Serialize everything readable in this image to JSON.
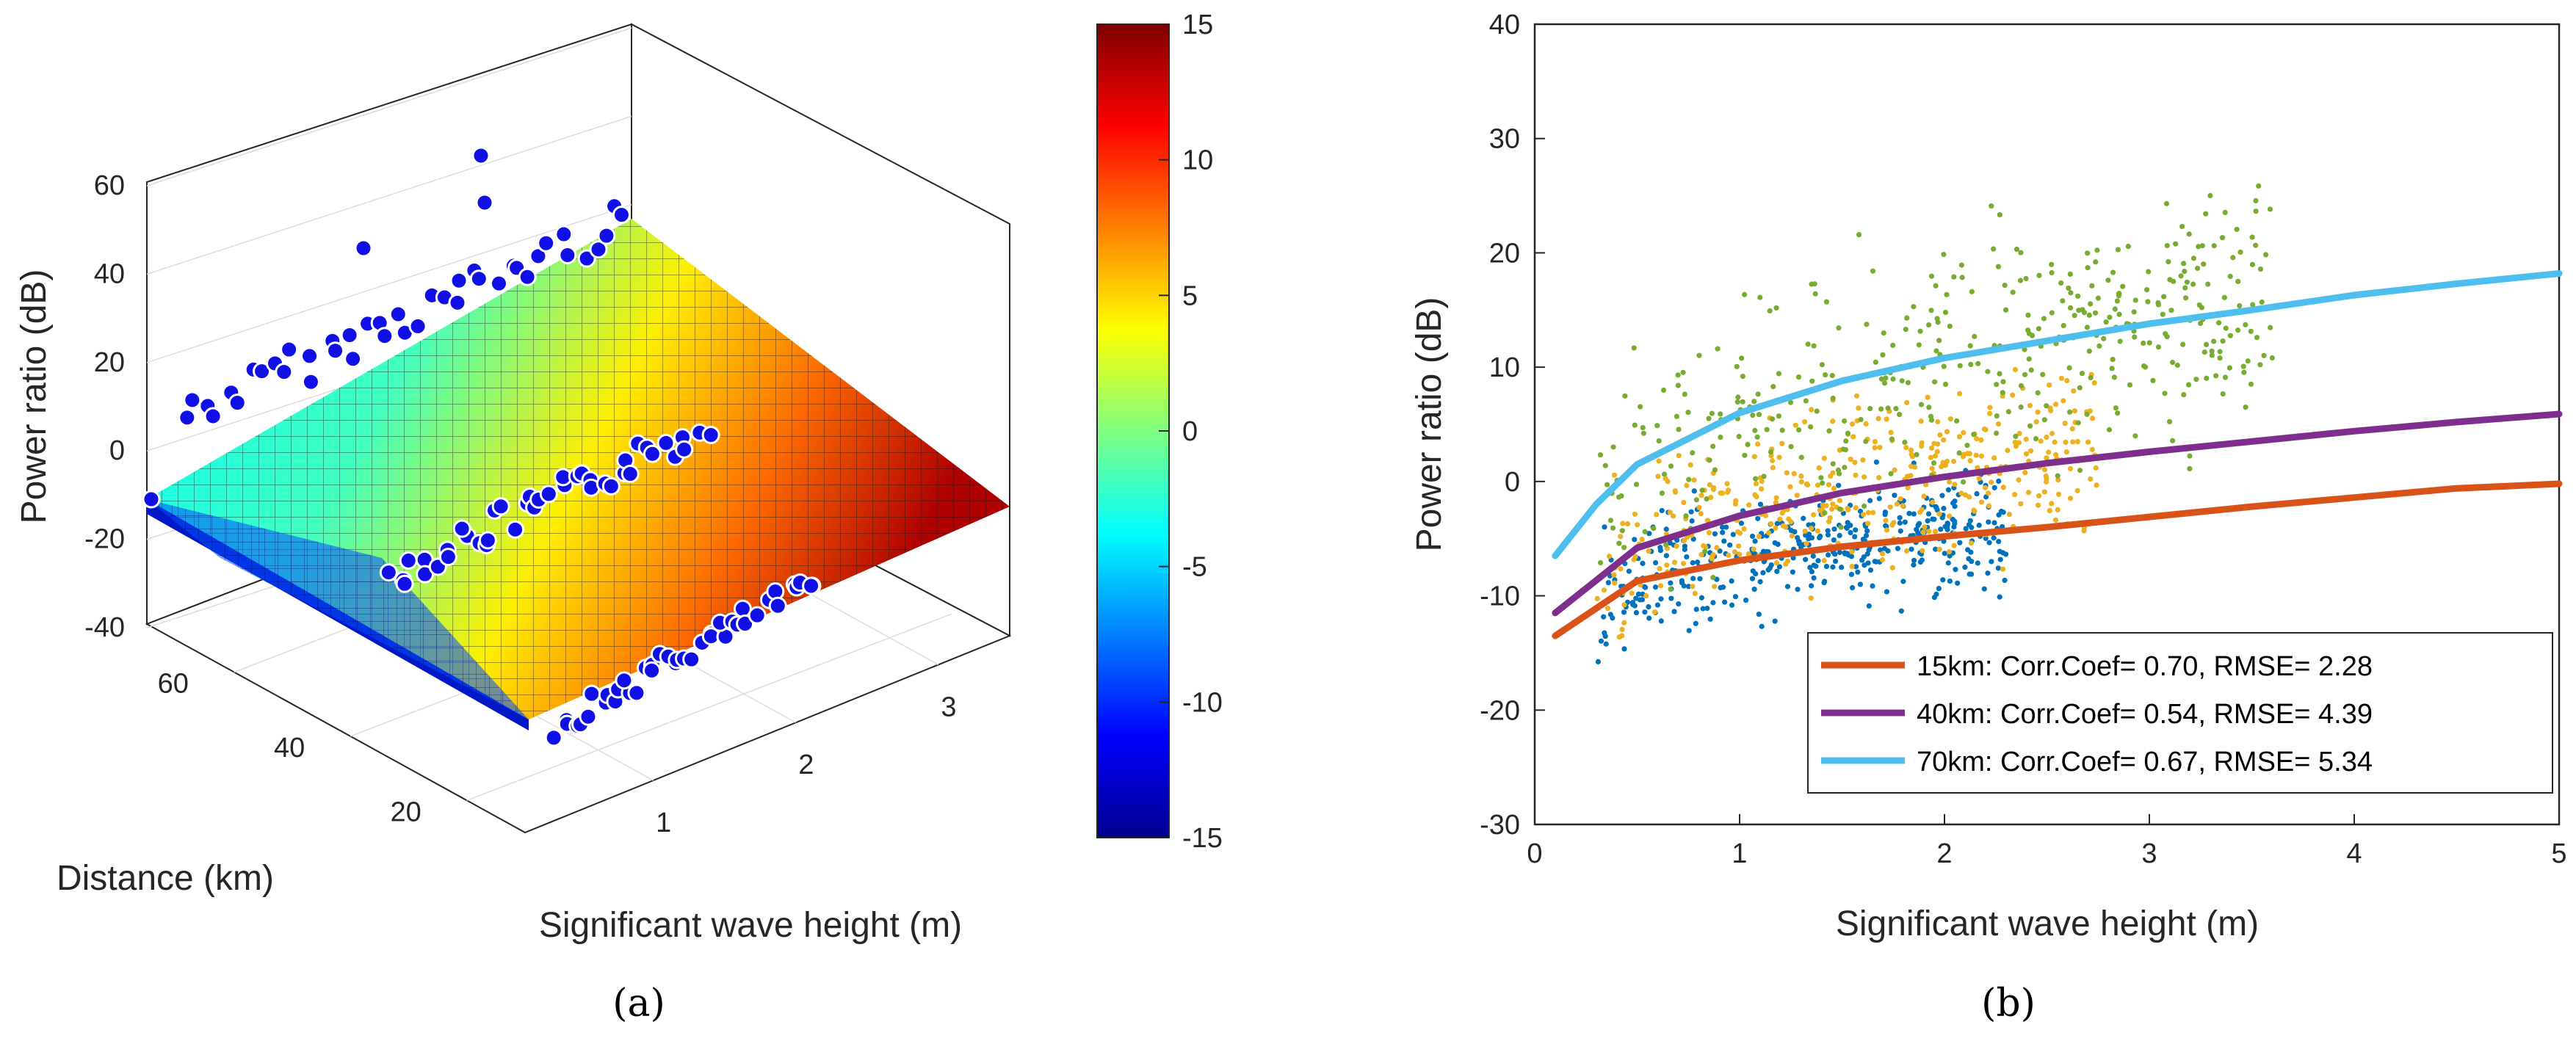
{
  "chart_data": [
    {
      "type": "surface3d",
      "panel_label": "(a)",
      "xlabel": "Significant wave height (m)",
      "ylabel": "Distance (km)",
      "zlabel": "Power ratio (dB)",
      "x_ticks": [
        "1",
        "2",
        "3"
      ],
      "y_ticks": [
        "20",
        "40",
        "60"
      ],
      "z_ticks": [
        "-40",
        "-20",
        "0",
        "20",
        "40",
        "60"
      ],
      "xlim": [
        0.1,
        3.5
      ],
      "ylim": [
        10,
        75
      ],
      "zlim": [
        -40,
        60
      ],
      "colorbar": {
        "ticks": [
          "15",
          "10",
          "5",
          "0",
          "-5",
          "-10",
          "-15"
        ],
        "range": [
          -15,
          15
        ]
      },
      "scatter_groups": [
        {
          "distance_km": 70,
          "z_mean_db": 12
        },
        {
          "distance_km": 40,
          "z_mean_db": -2
        },
        {
          "distance_km": 15,
          "z_mean_db": -7
        }
      ]
    },
    {
      "type": "scatter+line",
      "panel_label": "(b)",
      "xlabel": "Significant wave height (m)",
      "ylabel": "Power ratio (dB)",
      "xlim": [
        0,
        5
      ],
      "ylim": [
        -30,
        40
      ],
      "x_ticks": [
        "0",
        "1",
        "2",
        "3",
        "4",
        "5"
      ],
      "y_ticks": [
        "40",
        "30",
        "20",
        "10",
        "0",
        "-10",
        "-20",
        "-30"
      ],
      "scatter_series": [
        {
          "name": "15km data",
          "color": "#0072bd",
          "x_range": [
            0.3,
            2.3
          ],
          "trend": "15km"
        },
        {
          "name": "40km data",
          "color": "#edb120",
          "x_range": [
            0.3,
            2.75
          ],
          "trend": "40km"
        },
        {
          "name": "70km data",
          "color": "#77ac30",
          "x_range": [
            0.3,
            3.6
          ],
          "trend": "70km"
        }
      ],
      "fit_series": [
        {
          "name": "15km",
          "color": "#d95319",
          "label": "15km: Corr.Coef= 0.70, RMSE= 2.28",
          "x": [
            0.1,
            0.5,
            1,
            1.5,
            2,
            2.5,
            3,
            3.5,
            4,
            4.5,
            5
          ],
          "y": [
            -13.5,
            -8.7,
            -6.9,
            -5.7,
            -4.8,
            -4.0,
            -3.1,
            -2.2,
            -1.4,
            -0.6,
            -0.2
          ]
        },
        {
          "name": "40km",
          "color": "#7e2f8e",
          "label": "40km: Corr.Coef= 0.54, RMSE= 4.39",
          "x": [
            0.1,
            0.5,
            1,
            1.5,
            2,
            2.5,
            3,
            3.5,
            4,
            4.5,
            5
          ],
          "y": [
            -11.5,
            -5.8,
            -3.0,
            -1.0,
            0.4,
            1.6,
            2.6,
            3.5,
            4.4,
            5.2,
            5.9
          ]
        },
        {
          "name": "70km",
          "color": "#4dbeee",
          "label": "70km: Corr.Coef= 0.67, RMSE= 5.34",
          "x": [
            0.1,
            0.3,
            0.5,
            1,
            1.5,
            2,
            2.5,
            3,
            3.5,
            4,
            4.5,
            5
          ],
          "y": [
            -6.5,
            -2.0,
            1.5,
            6.0,
            8.8,
            10.8,
            12.3,
            13.8,
            15.0,
            16.3,
            17.3,
            18.2
          ]
        }
      ]
    }
  ]
}
